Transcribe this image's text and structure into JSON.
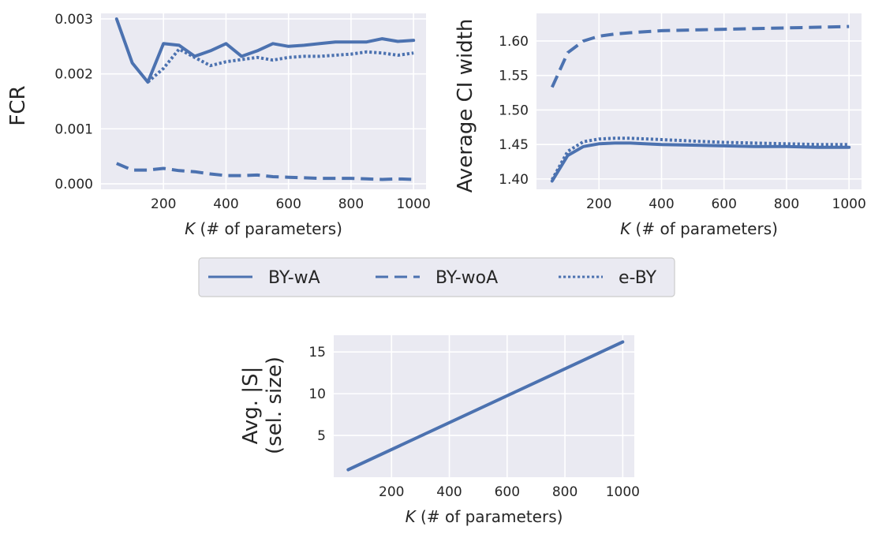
{
  "chart_data": [
    {
      "type": "line",
      "ylabel": "FCR",
      "xlabel": "K (# of parameters)",
      "xlabel_italic": "K",
      "xlabel_rest": " (# of parameters)",
      "xlim": [
        0,
        1040
      ],
      "ylim": [
        -0.0001,
        0.0031
      ],
      "xticks": [
        200,
        400,
        600,
        800,
        1000
      ],
      "xtick_labels": [
        "200",
        "400",
        "600",
        "800",
        "1000"
      ],
      "yticks": [
        0,
        0.001,
        0.002,
        0.003
      ],
      "ytick_labels": [
        "0.000",
        "0.001",
        "0.002",
        "0.003"
      ],
      "grid": true,
      "series": [
        {
          "name": "BY-wA",
          "style": "solid",
          "x": [
            50,
            100,
            150,
            200,
            250,
            300,
            350,
            400,
            450,
            500,
            550,
            600,
            650,
            700,
            750,
            800,
            850,
            900,
            950,
            1000
          ],
          "values": [
            0.003,
            0.0022,
            0.00185,
            0.00255,
            0.00252,
            0.00232,
            0.00242,
            0.00255,
            0.00232,
            0.00242,
            0.00255,
            0.0025,
            0.00252,
            0.00255,
            0.00258,
            0.00258,
            0.00258,
            0.00264,
            0.00259,
            0.00261
          ]
        },
        {
          "name": "BY-woA",
          "style": "dashed",
          "x": [
            50,
            100,
            150,
            200,
            250,
            300,
            350,
            400,
            450,
            500,
            550,
            600,
            650,
            700,
            750,
            800,
            850,
            900,
            950,
            1000
          ],
          "values": [
            0.00037,
            0.00025,
            0.00025,
            0.00028,
            0.00024,
            0.00022,
            0.00018,
            0.00015,
            0.00015,
            0.00016,
            0.00013,
            0.00012,
            0.00011,
            0.0001,
            0.0001,
            0.0001,
            9e-05,
            8e-05,
            9e-05,
            8e-05
          ]
        },
        {
          "name": "e-BY",
          "style": "dotted",
          "x": [
            150,
            200,
            250,
            300,
            350,
            400,
            450,
            500,
            550,
            600,
            650,
            700,
            750,
            800,
            850,
            900,
            950,
            1000
          ],
          "values": [
            0.00185,
            0.0021,
            0.00245,
            0.0023,
            0.00215,
            0.00222,
            0.00226,
            0.0023,
            0.00225,
            0.0023,
            0.00232,
            0.00232,
            0.00234,
            0.00236,
            0.0024,
            0.00238,
            0.00234,
            0.00238
          ]
        }
      ]
    },
    {
      "type": "line",
      "ylabel": "Average CI width",
      "xlabel": "K (# of parameters)",
      "xlabel_italic": "K",
      "xlabel_rest": " (# of parameters)",
      "xlim": [
        0,
        1040
      ],
      "ylim": [
        1.385,
        1.64
      ],
      "xticks": [
        200,
        400,
        600,
        800,
        1000
      ],
      "xtick_labels": [
        "200",
        "400",
        "600",
        "800",
        "1000"
      ],
      "yticks": [
        1.4,
        1.45,
        1.5,
        1.55,
        1.6
      ],
      "ytick_labels": [
        "1.40",
        "1.45",
        "1.50",
        "1.55",
        "1.60"
      ],
      "grid": true,
      "series": [
        {
          "name": "BY-wA",
          "style": "solid",
          "x": [
            50,
            100,
            150,
            200,
            250,
            300,
            400,
            500,
            600,
            700,
            800,
            900,
            1000
          ],
          "values": [
            1.397,
            1.434,
            1.447,
            1.451,
            1.452,
            1.452,
            1.45,
            1.449,
            1.448,
            1.447,
            1.447,
            1.446,
            1.446
          ]
        },
        {
          "name": "BY-woA",
          "style": "dashed",
          "x": [
            50,
            100,
            150,
            200,
            250,
            300,
            400,
            500,
            600,
            700,
            800,
            900,
            1000
          ],
          "values": [
            1.533,
            1.583,
            1.6,
            1.607,
            1.61,
            1.612,
            1.615,
            1.616,
            1.617,
            1.618,
            1.619,
            1.62,
            1.621
          ]
        },
        {
          "name": "e-BY",
          "style": "dotted",
          "x": [
            50,
            100,
            150,
            200,
            250,
            300,
            400,
            500,
            600,
            700,
            800,
            900,
            1000
          ],
          "values": [
            1.399,
            1.44,
            1.454,
            1.458,
            1.459,
            1.459,
            1.457,
            1.455,
            1.453,
            1.452,
            1.451,
            1.45,
            1.45
          ]
        }
      ]
    },
    {
      "type": "line",
      "ylabel_line1": "Avg. |S|",
      "ylabel_line2": "(sel. size)",
      "xlabel": "K (# of parameters)",
      "xlabel_italic": "K",
      "xlabel_rest": " (# of parameters)",
      "xlim": [
        0,
        1040
      ],
      "ylim": [
        0,
        17
      ],
      "xticks": [
        200,
        400,
        600,
        800,
        1000
      ],
      "xtick_labels": [
        "200",
        "400",
        "600",
        "800",
        "1000"
      ],
      "yticks": [
        5,
        10,
        15
      ],
      "ytick_labels": [
        "5",
        "10",
        "15"
      ],
      "grid": true,
      "series": [
        {
          "style": "solid",
          "x": [
            50,
            1000
          ],
          "values": [
            0.9,
            16.2
          ]
        }
      ]
    }
  ],
  "legend": {
    "placement": "center",
    "entries": [
      {
        "label": "BY-wA",
        "style": "solid"
      },
      {
        "label": "BY-woA",
        "style": "dashed"
      },
      {
        "label": "e-BY",
        "style": "dotted"
      }
    ]
  },
  "colors": {
    "line": "#4c72b0",
    "background": "#eaeaf2",
    "grid": "#ffffff",
    "text": "#262626"
  }
}
